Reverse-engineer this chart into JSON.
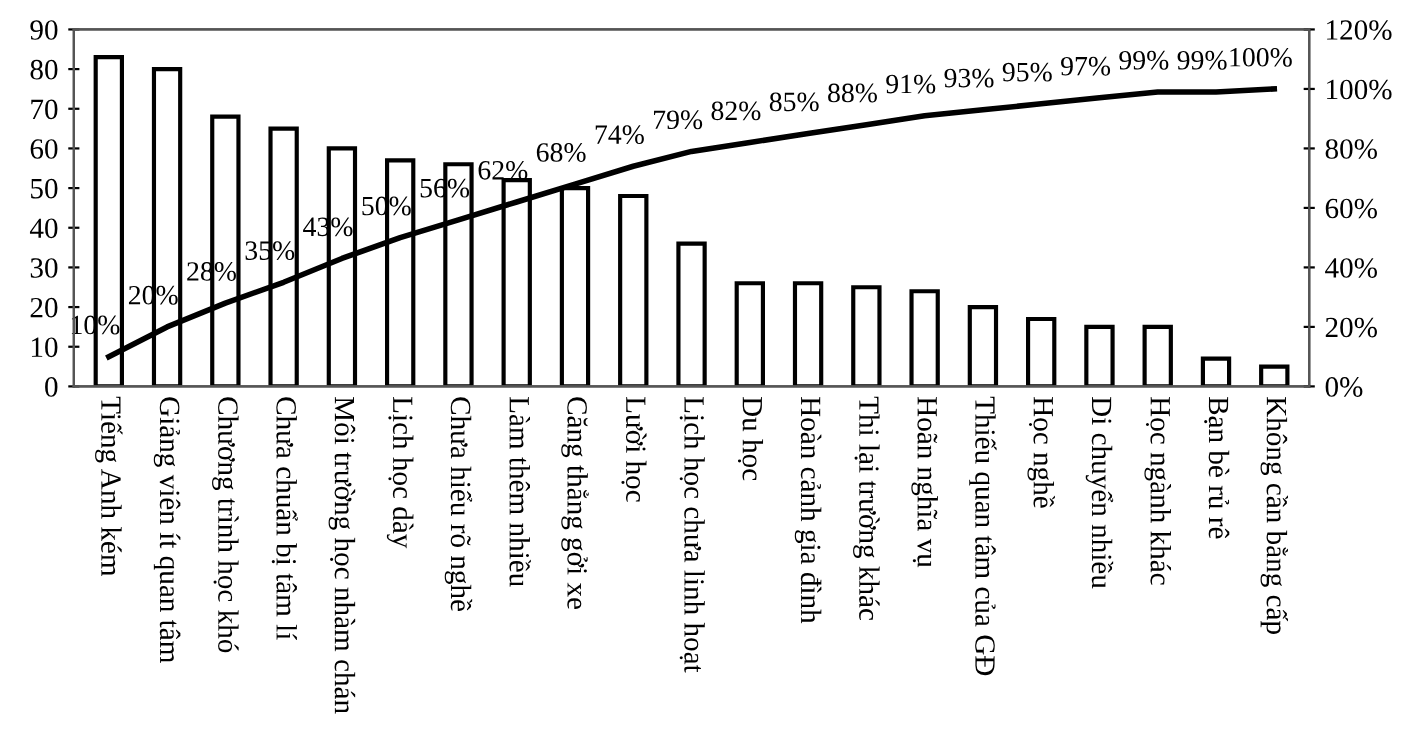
{
  "chart_data": {
    "type": "bar",
    "categories": [
      "Tiếng Anh kém",
      "Giảng viên ít quan tâm",
      "Chương trình học khó",
      "Chưa chuẩn bị tâm lí",
      "Môi trường học nhàm chán",
      "Lịch học dày",
      "Chưa hiểu rõ nghề",
      "Làm thêm nhiều",
      "Căng thẳng gởi xe",
      "Lười học",
      "Lịch học chưa linh hoạt",
      "Du học",
      "Hoàn cảnh gia đình",
      "Thi lại trường khác",
      "Hoãn nghĩa vụ",
      "Thiếu quan tâm của GĐ",
      "Học nghề",
      "Di chuyển nhiều",
      "Học ngành khác",
      "Bạn bè rủ rê",
      "Không cần bằng cấp"
    ],
    "series": [
      {
        "color": "#ffffff",
        "values": [
          83,
          80,
          68,
          65,
          60,
          57,
          56,
          52,
          50,
          48,
          36,
          26,
          26,
          25,
          24,
          20,
          17,
          15,
          15,
          7,
          5
        ]
      },
      {
        "type": "line",
        "axis": "y2",
        "color": "#000000",
        "values": [
          10,
          20,
          28,
          35,
          43,
          50,
          56,
          62,
          68,
          74,
          79,
          82,
          85,
          88,
          91,
          93,
          95,
          97,
          99,
          99,
          100
        ],
        "value_labels": [
          "10%",
          "20%",
          "28%",
          "35%",
          "43%",
          "50%",
          "56%",
          "62%",
          "68%",
          "74%",
          "79%",
          "82%",
          "85%",
          "88%",
          "91%",
          "93%",
          "95%",
          "97%",
          "99%",
          "99%",
          "100%"
        ]
      }
    ],
    "ylim": [
      0,
      90
    ],
    "yticks": [
      0,
      10,
      20,
      30,
      40,
      50,
      60,
      70,
      80,
      90
    ],
    "y2lim": [
      0,
      120
    ],
    "y2ticks": [
      {
        "value": 0,
        "label": "0%"
      },
      {
        "value": 20,
        "label": "20%"
      },
      {
        "value": 40,
        "label": "40%"
      },
      {
        "value": 60,
        "label": "60%"
      },
      {
        "value": 80,
        "label": "80%"
      },
      {
        "value": 100,
        "label": "100%"
      },
      {
        "value": 120,
        "label": "120%"
      }
    ],
    "grid": false,
    "legend": false,
    "marker": "none",
    "line_style": "solid"
  }
}
